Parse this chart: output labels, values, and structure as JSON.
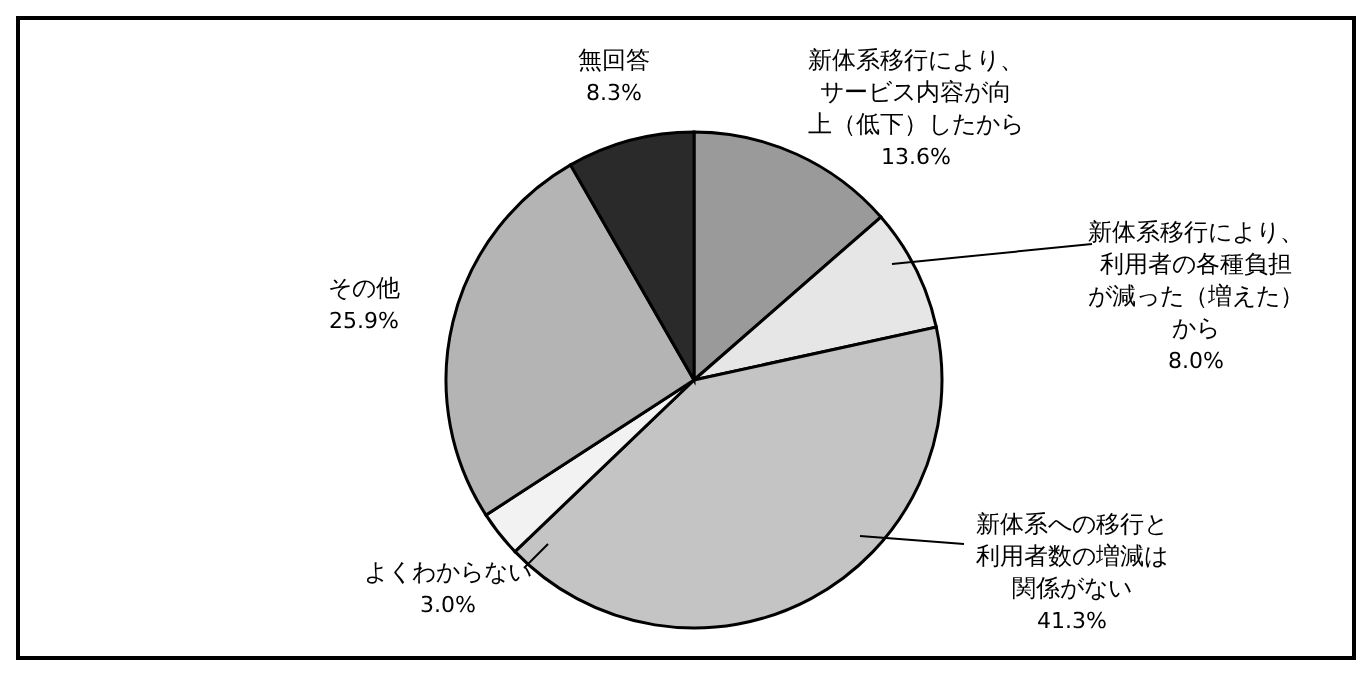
{
  "chart_data": {
    "type": "pie",
    "categories": [
      "新体系移行により、サービス内容が向上（低下）したから",
      "新体系移行により、利用者の各種負担が減った（増えた）から",
      "新体系への移行と利用者数の増減は関係がない",
      "よくわからない",
      "その他",
      "無回答"
    ],
    "values": [
      13.6,
      8.0,
      41.3,
      3.0,
      25.9,
      8.3
    ],
    "value_labels": [
      "13.6%",
      "8.0%",
      "41.3%",
      "3.0%",
      "25.9%",
      "8.3%"
    ],
    "colors": [
      "#9a9a9a",
      "#e6e6e6",
      "#c4c4c4",
      "#f2f2f2",
      "#b4b4b4",
      "#2a2a2a"
    ]
  }
}
